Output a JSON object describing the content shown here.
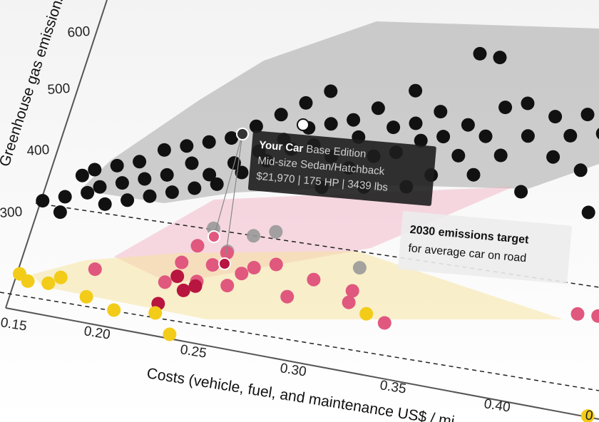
{
  "chart_data": {
    "type": "scatter",
    "title": "",
    "xlabel": "Costs (vehicle, fuel, and maintenance US$ / mi",
    "ylabel": "Greenhouse gas emissions (life",
    "x_ticks": [
      "0.15",
      "0.20",
      "0.25",
      "0.30",
      "0.35",
      "0.40",
      "0"
    ],
    "y_ticks": [
      "600",
      "500",
      "400",
      "300"
    ],
    "grid": false,
    "series": [
      {
        "color": "#111111",
        "points": [
          [
            0.16,
            340
          ],
          [
            0.17,
            350
          ],
          [
            0.17,
            330
          ],
          [
            0.175,
            380
          ],
          [
            0.18,
            360
          ],
          [
            0.18,
            390
          ],
          [
            0.185,
            370
          ],
          [
            0.19,
            400
          ],
          [
            0.19,
            350
          ],
          [
            0.195,
            380
          ],
          [
            0.2,
            410
          ],
          [
            0.2,
            360
          ],
          [
            0.205,
            390
          ],
          [
            0.21,
            430
          ],
          [
            0.21,
            370
          ],
          [
            0.215,
            400
          ],
          [
            0.22,
            440
          ],
          [
            0.22,
            380
          ],
          [
            0.225,
            420
          ],
          [
            0.23,
            450
          ],
          [
            0.23,
            390
          ],
          [
            0.235,
            410
          ],
          [
            0.24,
            460
          ],
          [
            0.24,
            400
          ],
          [
            0.245,
            430
          ],
          [
            0.25,
            480
          ],
          [
            0.25,
            420
          ],
          [
            0.255,
            450
          ],
          [
            0.26,
            500
          ],
          [
            0.26,
            440
          ],
          [
            0.265,
            470
          ],
          [
            0.27,
            520
          ],
          [
            0.27,
            460
          ],
          [
            0.275,
            490
          ],
          [
            0.28,
            540
          ],
          [
            0.28,
            470
          ],
          [
            0.285,
            500
          ],
          [
            0.29,
            420
          ],
          [
            0.29,
            460
          ],
          [
            0.295,
            510
          ],
          [
            0.3,
            450
          ],
          [
            0.3,
            490
          ],
          [
            0.305,
            530
          ],
          [
            0.31,
            430
          ],
          [
            0.31,
            470
          ],
          [
            0.315,
            510
          ],
          [
            0.32,
            560
          ],
          [
            0.32,
            480
          ],
          [
            0.325,
            520
          ],
          [
            0.33,
            440
          ],
          [
            0.33,
            500
          ],
          [
            0.335,
            540
          ],
          [
            0.34,
            460
          ],
          [
            0.34,
            510
          ],
          [
            0.345,
            620
          ],
          [
            0.35,
            490
          ],
          [
            0.35,
            530
          ],
          [
            0.355,
            620
          ],
          [
            0.36,
            470
          ],
          [
            0.36,
            520
          ],
          [
            0.365,
            560
          ],
          [
            0.37,
            500
          ],
          [
            0.375,
            570
          ],
          [
            0.38,
            530
          ],
          [
            0.385,
            460
          ],
          [
            0.39,
            560
          ],
          [
            0.395,
            510
          ],
          [
            0.4,
            540
          ],
          [
            0.405,
            570
          ],
          [
            0.41,
            500
          ],
          [
            0.415,
            550
          ],
          [
            0.42,
            450
          ],
          [
            0.425,
            520
          ],
          [
            0.43,
            570
          ],
          [
            0.435,
            480
          ],
          [
            0.44,
            600
          ],
          [
            0.445,
            530
          ],
          [
            0.45,
            390
          ],
          [
            0.455,
            590
          ],
          [
            0.46,
            490
          ],
          [
            0.465,
            560
          ],
          [
            0.47,
            600
          ],
          [
            0.48,
            410
          ]
        ]
      },
      {
        "color": "#999999",
        "points": [
          [
            0.245,
            345
          ],
          [
            0.255,
            320
          ],
          [
            0.265,
            345
          ],
          [
            0.275,
            355
          ],
          [
            0.32,
            330
          ]
        ]
      },
      {
        "color": "#e0587e",
        "points": [
          [
            0.195,
            268
          ],
          [
            0.23,
            268
          ],
          [
            0.235,
            296
          ],
          [
            0.24,
            320
          ],
          [
            0.245,
            276
          ],
          [
            0.25,
            300
          ],
          [
            0.255,
            318
          ],
          [
            0.26,
            278
          ],
          [
            0.265,
            296
          ],
          [
            0.27,
            306
          ],
          [
            0.28,
            315
          ],
          [
            0.29,
            278
          ],
          [
            0.3,
            305
          ],
          [
            0.32,
            300
          ],
          [
            0.32,
            285
          ],
          [
            0.34,
            268
          ],
          [
            0.43,
            323
          ],
          [
            0.44,
            325
          ]
        ]
      },
      {
        "color": "#b81540",
        "points": [
          [
            0.235,
            278
          ],
          [
            0.24,
            262
          ],
          [
            0.245,
            270
          ],
          [
            0.23,
            240
          ]
        ]
      },
      {
        "color": "#f2cc18",
        "points": [
          [
            0.16,
            245
          ],
          [
            0.165,
            238
          ],
          [
            0.175,
            240
          ],
          [
            0.18,
            250
          ],
          [
            0.195,
            232
          ],
          [
            0.21,
            222
          ],
          [
            0.23,
            228
          ],
          [
            0.24,
            205
          ],
          [
            0.33,
            275
          ],
          [
            0.45,
            200
          ]
        ]
      }
    ],
    "highlight": {
      "label_bold": "Your Car",
      "label_rest": " Base Edition",
      "line2": "Mid-size Sedan/Hatchback",
      "line3": "$21,970 | 175 HP | 3439 lbs"
    },
    "reference_line": {
      "title": "2030 emissions target",
      "subtitle": "for average car on road"
    }
  }
}
